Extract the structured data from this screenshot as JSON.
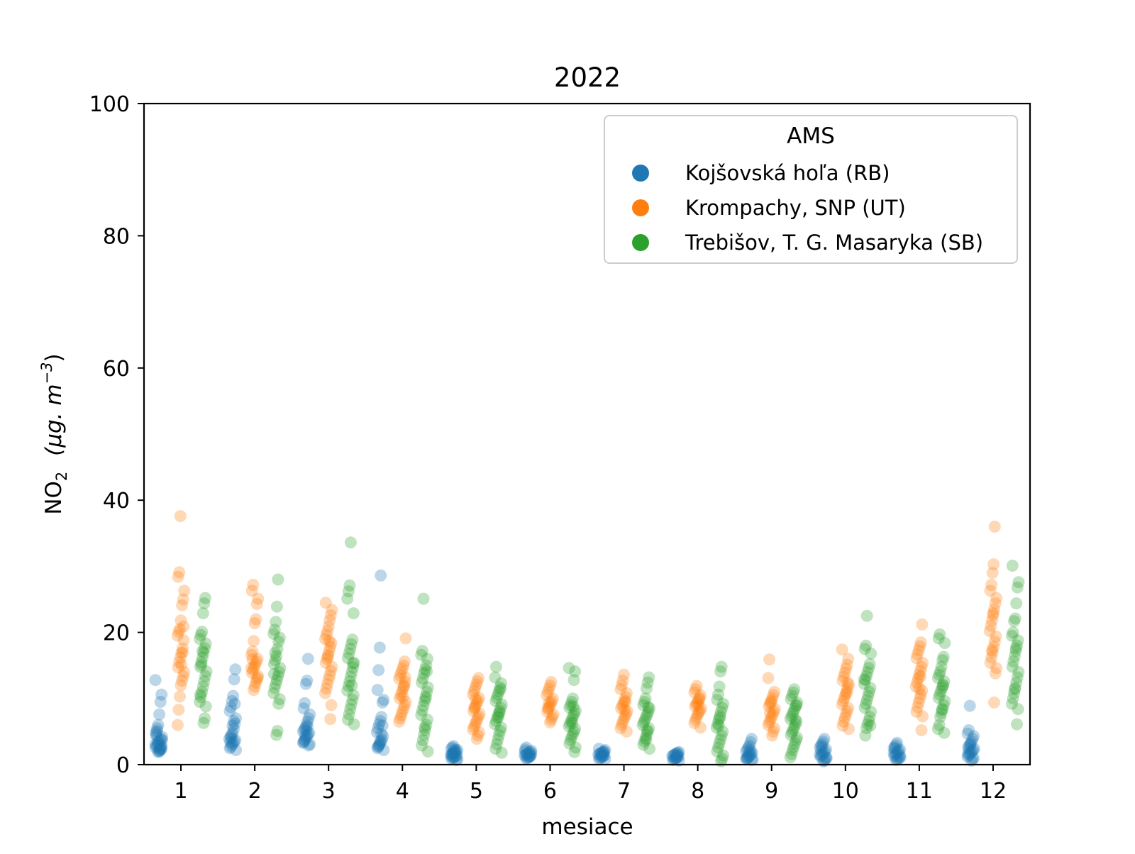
{
  "chart_data": {
    "type": "scatter",
    "title": "2022",
    "xlabel": "mesiace",
    "ylabel_main": "NO",
    "ylabel_sub": "2",
    "ylabel_unit": "(μg. m",
    "ylabel_exp": "−3",
    "ylabel_close": ")",
    "xlim": [
      0.5,
      12.5
    ],
    "ylim": [
      0,
      100
    ],
    "x_ticks": [
      1,
      2,
      3,
      4,
      5,
      6,
      7,
      8,
      9,
      10,
      11,
      12
    ],
    "x_tick_labels": [
      "1",
      "2",
      "3",
      "4",
      "5",
      "6",
      "7",
      "8",
      "9",
      "10",
      "11",
      "12"
    ],
    "y_ticks": [
      0,
      20,
      40,
      60,
      80,
      100
    ],
    "y_tick_labels": [
      "0",
      "20",
      "40",
      "60",
      "80",
      "100"
    ],
    "grid": false,
    "legend": {
      "title": "AMS",
      "position": "top-right"
    },
    "series": [
      {
        "name": "Kojšovská hoľa (RB)",
        "color": "#1f77b4",
        "values": [
          [
            12.8,
            10.6,
            9.5,
            7.6,
            6.0,
            5.1,
            4.6,
            4.2,
            3.9,
            3.6,
            3.3,
            3.0,
            2.8,
            2.6,
            2.4,
            2.2,
            2.0,
            1.9,
            5.5,
            4.9,
            3.7,
            2.9,
            2.5,
            2.1,
            3.4,
            4.3,
            3.1,
            2.7,
            2.3
          ],
          [
            14.4,
            12.9,
            10.4,
            9.6,
            8.7,
            8.1,
            7.0,
            6.2,
            5.4,
            4.8,
            4.5,
            4.2,
            3.9,
            3.7,
            3.5,
            3.2,
            3.0,
            2.7,
            2.5,
            2.2,
            9.2,
            6.6,
            5.9,
            4.0,
            3.4
          ],
          [
            16.0,
            12.7,
            12.2,
            9.3,
            8.5,
            7.6,
            7.0,
            6.5,
            6.0,
            5.6,
            5.3,
            5.0,
            4.8,
            4.6,
            4.3,
            4.0,
            3.7,
            3.4,
            3.1,
            2.9,
            5.8,
            5.2,
            4.4,
            3.6,
            3.3
          ],
          [
            28.6,
            17.7,
            14.3,
            11.3,
            9.8,
            9.4,
            7.2,
            6.6,
            6.1,
            5.5,
            4.9,
            4.3,
            3.8,
            3.4,
            3.1,
            2.8,
            2.5,
            2.2,
            5.9,
            4.6,
            3.6,
            3.0,
            2.7
          ],
          [
            2.8,
            2.6,
            2.4,
            2.2,
            2.0,
            1.9,
            1.8,
            1.7,
            1.6,
            1.5,
            1.4,
            1.3,
            1.2,
            1.1,
            1.0,
            0.9,
            0.8,
            0.7,
            2.3,
            2.1,
            1.6,
            1.3
          ],
          [
            2.6,
            2.3,
            2.1,
            1.9,
            1.8,
            1.7,
            1.6,
            1.5,
            1.4,
            1.3,
            1.2,
            1.1,
            1.0,
            0.9,
            2.0,
            1.7,
            1.4,
            1.2
          ],
          [
            2.4,
            2.2,
            2.0,
            1.9,
            1.8,
            1.7,
            1.6,
            1.5,
            1.4,
            1.3,
            1.2,
            1.1,
            1.0,
            0.9,
            0.8,
            1.9,
            1.6,
            1.3
          ],
          [
            1.9,
            1.8,
            1.7,
            1.6,
            1.5,
            1.4,
            1.3,
            1.2,
            1.1,
            1.0,
            0.9,
            0.8,
            0.7,
            0.6,
            1.5,
            1.2,
            1.0
          ],
          [
            3.9,
            3.4,
            2.9,
            2.6,
            2.3,
            2.0,
            1.8,
            1.6,
            1.4,
            1.2,
            1.0,
            0.9,
            0.8,
            0.7,
            2.2,
            1.9,
            1.5,
            1.1,
            0.9
          ],
          [
            3.9,
            3.5,
            3.2,
            2.9,
            2.6,
            2.3,
            2.0,
            1.8,
            1.6,
            1.4,
            1.2,
            1.0,
            0.8,
            0.6,
            0.5,
            2.7,
            2.1,
            1.5,
            1.1
          ],
          [
            3.3,
            3.0,
            2.7,
            2.5,
            2.3,
            2.1,
            1.9,
            1.7,
            1.5,
            1.3,
            1.1,
            1.0,
            0.9,
            0.8,
            0.7,
            2.4,
            1.8,
            1.4
          ],
          [
            8.9,
            5.2,
            4.7,
            4.3,
            3.9,
            3.5,
            3.2,
            2.9,
            2.6,
            2.4,
            2.2,
            2.0,
            1.8,
            1.6,
            1.4,
            1.2,
            1.0,
            0.8,
            0.6,
            3.0,
            2.3,
            1.7
          ]
        ]
      },
      {
        "name": "Krompachy, SNP (UT)",
        "color": "#ff7f0e",
        "values": [
          [
            37.6,
            29.1,
            28.4,
            26.3,
            25.0,
            24.1,
            21.8,
            20.5,
            20.1,
            19.5,
            18.8,
            17.6,
            16.9,
            16.2,
            15.5,
            14.7,
            14.0,
            13.4,
            12.7,
            12.0,
            10.3,
            8.3,
            6.0,
            20.9,
            17.0,
            15.1
          ],
          [
            27.2,
            26.3,
            25.1,
            24.3,
            22.0,
            21.4,
            18.7,
            17.1,
            16.6,
            16.0,
            15.6,
            15.2,
            14.8,
            14.3,
            13.9,
            13.4,
            12.9,
            12.4,
            11.8,
            11.3,
            15.9,
            14.6,
            13.1
          ],
          [
            24.5,
            23.4,
            22.6,
            21.8,
            20.9,
            20.2,
            19.6,
            19.0,
            18.4,
            17.8,
            17.2,
            16.6,
            16.0,
            15.4,
            14.8,
            14.2,
            13.5,
            12.9,
            12.2,
            11.5,
            10.8,
            9.0,
            6.9,
            18.7,
            16.3
          ],
          [
            19.1,
            15.6,
            15.0,
            14.5,
            14.0,
            13.5,
            13.0,
            12.5,
            12.0,
            11.5,
            11.0,
            10.5,
            10.0,
            9.5,
            9.0,
            8.5,
            8.0,
            7.5,
            7.0,
            6.5,
            13.2,
            11.8,
            10.2
          ],
          [
            13.1,
            12.6,
            12.1,
            11.6,
            11.1,
            10.6,
            10.1,
            9.7,
            9.3,
            8.9,
            8.5,
            8.1,
            7.7,
            7.3,
            6.9,
            6.5,
            6.1,
            5.7,
            5.3,
            4.9,
            4.4,
            3.9,
            9.9,
            8.7
          ],
          [
            12.5,
            12.0,
            11.5,
            11.0,
            10.5,
            10.0,
            9.6,
            9.2,
            8.8,
            8.4,
            8.0,
            7.6,
            7.2,
            6.8,
            6.4,
            9.4,
            8.6
          ],
          [
            13.6,
            12.7,
            12.0,
            11.4,
            10.8,
            10.2,
            9.7,
            9.3,
            8.9,
            8.5,
            8.1,
            7.7,
            7.3,
            6.9,
            6.5,
            6.0,
            5.5,
            5.0,
            9.5,
            8.3
          ],
          [
            11.9,
            11.4,
            10.9,
            10.5,
            10.1,
            9.7,
            9.4,
            9.1,
            8.8,
            8.5,
            8.2,
            7.9,
            7.6,
            7.2,
            6.8,
            6.3,
            5.6,
            9.9,
            9.0
          ],
          [
            15.9,
            13.1,
            11.0,
            10.5,
            10.0,
            9.6,
            9.2,
            8.8,
            8.4,
            8.0,
            7.6,
            7.2,
            6.8,
            6.4,
            6.0,
            5.5,
            5.0,
            4.4,
            9.4,
            7.8
          ],
          [
            17.4,
            16.0,
            15.1,
            14.5,
            13.9,
            13.3,
            12.7,
            12.1,
            11.6,
            11.1,
            10.6,
            10.1,
            9.6,
            9.1,
            8.6,
            8.1,
            7.6,
            7.1,
            6.5,
            5.9,
            5.4,
            12.4,
            10.8
          ],
          [
            21.2,
            18.5,
            17.9,
            17.3,
            16.7,
            16.1,
            15.4,
            14.8,
            14.2,
            13.6,
            13.0,
            12.4,
            11.8,
            11.2,
            10.6,
            10.0,
            9.4,
            8.7,
            8.0,
            7.3,
            5.2,
            13.3,
            11.5
          ],
          [
            36.0,
            30.3,
            29.0,
            27.2,
            26.3,
            25.2,
            24.4,
            23.5,
            22.6,
            21.8,
            21.0,
            20.2,
            19.4,
            18.6,
            17.8,
            17.0,
            16.2,
            15.4,
            14.6,
            13.8,
            9.4,
            22.9,
            17.3
          ]
        ]
      },
      {
        "name": "Trebišov, T. G. Masaryka (SB)",
        "color": "#2ca02c",
        "values": [
          [
            25.2,
            24.4,
            22.9,
            20.1,
            19.6,
            19.0,
            18.3,
            17.6,
            16.9,
            16.2,
            15.5,
            14.8,
            14.1,
            13.4,
            12.6,
            11.8,
            11.0,
            10.2,
            9.5,
            8.8,
            7.0,
            6.3,
            17.2,
            15.1,
            10.6
          ],
          [
            28.0,
            23.9,
            21.6,
            20.4,
            19.8,
            19.2,
            18.6,
            17.5,
            16.4,
            15.8,
            15.2,
            14.6,
            14.0,
            13.4,
            12.8,
            12.2,
            11.6,
            10.8,
            9.9,
            9.2,
            5.1,
            4.5,
            16.9,
            13.7
          ],
          [
            33.6,
            27.1,
            26.2,
            25.1,
            22.9,
            18.9,
            18.2,
            17.5,
            16.8,
            16.1,
            15.4,
            14.7,
            14.0,
            13.3,
            12.6,
            11.9,
            11.2,
            10.5,
            9.8,
            9.1,
            8.4,
            7.6,
            6.8,
            6.1,
            15.3,
            12.0
          ],
          [
            25.1,
            17.2,
            16.6,
            16.0,
            15.0,
            14.4,
            13.8,
            13.0,
            12.4,
            11.7,
            11.0,
            10.3,
            9.6,
            8.9,
            8.2,
            7.5,
            6.8,
            6.0,
            5.2,
            4.5,
            3.7,
            2.9,
            2.0,
            14.1,
            10.0,
            5.6
          ],
          [
            14.8,
            13.2,
            12.3,
            11.7,
            11.1,
            10.6,
            10.1,
            9.6,
            9.1,
            8.6,
            8.1,
            7.6,
            7.1,
            6.6,
            6.1,
            5.6,
            5.1,
            4.5,
            3.8,
            3.1,
            2.4,
            1.8,
            11.4,
            7.9,
            7.2
          ],
          [
            14.6,
            14.1,
            12.8,
            10.0,
            9.5,
            9.0,
            8.6,
            8.2,
            7.8,
            7.4,
            7.0,
            6.6,
            6.2,
            5.8,
            5.4,
            5.0,
            4.6,
            4.2,
            3.7,
            3.2,
            2.6,
            1.9,
            8.8,
            6.3
          ],
          [
            13.2,
            12.4,
            11.5,
            10.0,
            9.5,
            9.0,
            8.5,
            8.0,
            7.6,
            7.2,
            6.8,
            6.4,
            6.0,
            5.5,
            5.0,
            4.5,
            4.0,
            3.5,
            3.0,
            2.4,
            8.7,
            5.2,
            3.8
          ],
          [
            14.8,
            14.1,
            11.8,
            10.6,
            9.8,
            9.2,
            8.6,
            8.0,
            7.4,
            6.8,
            6.2,
            5.6,
            5.0,
            4.4,
            3.8,
            3.2,
            2.6,
            2.0,
            1.4,
            0.9,
            0.5,
            7.1,
            5.9
          ],
          [
            11.4,
            10.9,
            10.4,
            9.9,
            9.4,
            8.9,
            8.5,
            8.1,
            7.7,
            7.3,
            6.9,
            6.5,
            6.1,
            5.7,
            5.3,
            4.9,
            4.5,
            4.1,
            3.7,
            3.2,
            2.7,
            2.2,
            1.6,
            1.1,
            9.0,
            6.8
          ],
          [
            22.5,
            18.0,
            17.5,
            16.8,
            15.2,
            14.6,
            14.0,
            13.4,
            12.8,
            12.2,
            11.6,
            11.0,
            10.4,
            9.8,
            9.2,
            8.6,
            8.0,
            7.2,
            6.6,
            6.1,
            5.5,
            4.4,
            12.9,
            5.9
          ],
          [
            19.7,
            19.1,
            18.4,
            16.3,
            15.8,
            14.8,
            14.1,
            13.6,
            13.1,
            12.6,
            12.1,
            11.6,
            11.1,
            10.6,
            10.1,
            9.6,
            9.0,
            8.4,
            7.8,
            7.2,
            6.0,
            5.4,
            4.8,
            11.9,
            8.3
          ],
          [
            30.1,
            27.6,
            26.8,
            24.4,
            22.1,
            21.7,
            20.0,
            19.5,
            18.8,
            18.0,
            17.2,
            16.4,
            15.6,
            14.8,
            14.0,
            13.2,
            12.4,
            11.6,
            10.8,
            10.0,
            9.2,
            8.4,
            6.1,
            17.6,
            11.4
          ]
        ]
      }
    ]
  }
}
